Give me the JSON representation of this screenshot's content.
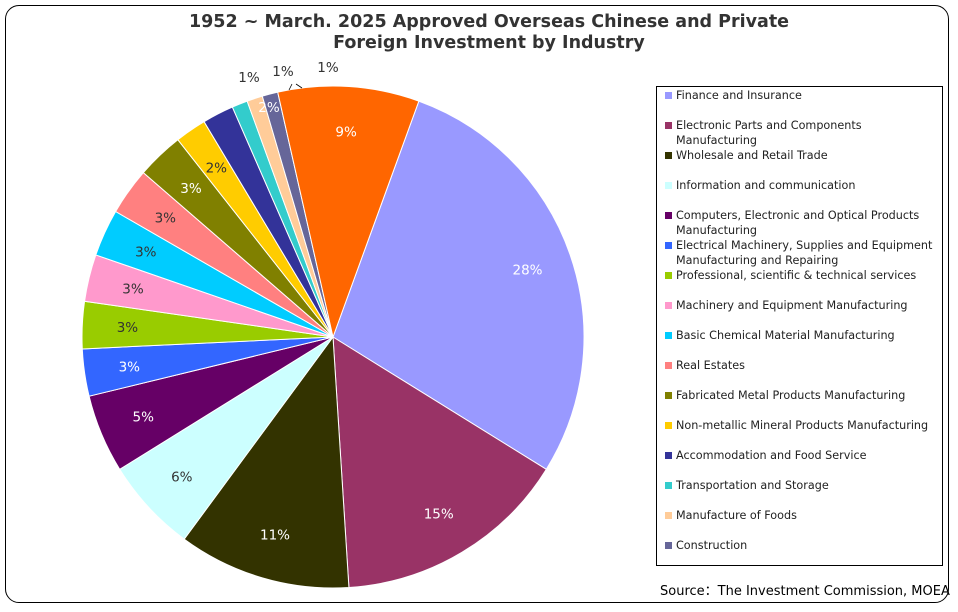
{
  "chart_data": {
    "type": "pie",
    "title_line1": "1952 ~ March. 2025 Approved Overseas Chinese and Private",
    "title_line2": "Foreign Investment by Industry",
    "legend_position": "right",
    "source": "Source：The Investment Commission, MOEA",
    "slices": [
      {
        "label": "Finance and Insurance",
        "value": 28,
        "display": "28%",
        "color": "#9999ff",
        "label_color": "#ffffff"
      },
      {
        "label": "Electronic Parts and Components Manufacturing",
        "value": 15,
        "display": "15%",
        "color": "#993366",
        "label_color": "#ffffff"
      },
      {
        "label": "Wholesale and Retail Trade",
        "value": 11,
        "display": "11%",
        "color": "#333300",
        "label_color": "#ffffff"
      },
      {
        "label": "Information and communication",
        "value": 6,
        "display": "6%",
        "color": "#ccffff",
        "label_color": "#333333"
      },
      {
        "label": "Computers, Electronic and Optical Products Manufacturing",
        "value": 5,
        "display": "5%",
        "color": "#660066",
        "label_color": "#ffffff"
      },
      {
        "label": "Electrical Machinery, Supplies and Equipment Manufacturing and Repairing",
        "value": 3,
        "display": "3%",
        "color": "#3366ff",
        "label_color": "#ffffff"
      },
      {
        "label": "Professional, scientific & technical services",
        "value": 3,
        "display": "3%",
        "color": "#99cc00",
        "label_color": "#333333"
      },
      {
        "label": "Machinery and Equipment Manufacturing",
        "value": 3,
        "display": "3%",
        "color": "#ff99cc",
        "label_color": "#333333"
      },
      {
        "label": "Basic Chemical Material Manufacturing",
        "value": 3,
        "display": "3%",
        "color": "#00ccff",
        "label_color": "#333333"
      },
      {
        "label": "Real Estates",
        "value": 3,
        "display": "3%",
        "color": "#ff8080",
        "label_color": "#333333"
      },
      {
        "label": "Fabricated Metal Products Manufacturing",
        "value": 3,
        "display": "3%",
        "color": "#808000",
        "label_color": "#ffffff"
      },
      {
        "label": "Non-metallic Mineral Products Manufacturing",
        "value": 2,
        "display": "2%",
        "color": "#ffcc00",
        "label_color": "#333333"
      },
      {
        "label": "Accommodation and Food Service",
        "value": 2,
        "display": "2%",
        "color": "#333399",
        "label_color": "#ffffff"
      },
      {
        "label": "Transportation and Storage",
        "value": 1,
        "display": "1%",
        "color": "#33cccc",
        "label_color": "#333333"
      },
      {
        "label": "Manufacture of Foods",
        "value": 1,
        "display": "1%",
        "color": "#ffcc99",
        "label_color": "#333333"
      },
      {
        "label": "Construction",
        "value": 1,
        "display": "1%",
        "color": "#666699",
        "label_color": "#333333"
      },
      {
        "label": "",
        "value": 9,
        "display": "9%",
        "color": "#ff6600",
        "label_color": "#ffffff"
      }
    ]
  }
}
